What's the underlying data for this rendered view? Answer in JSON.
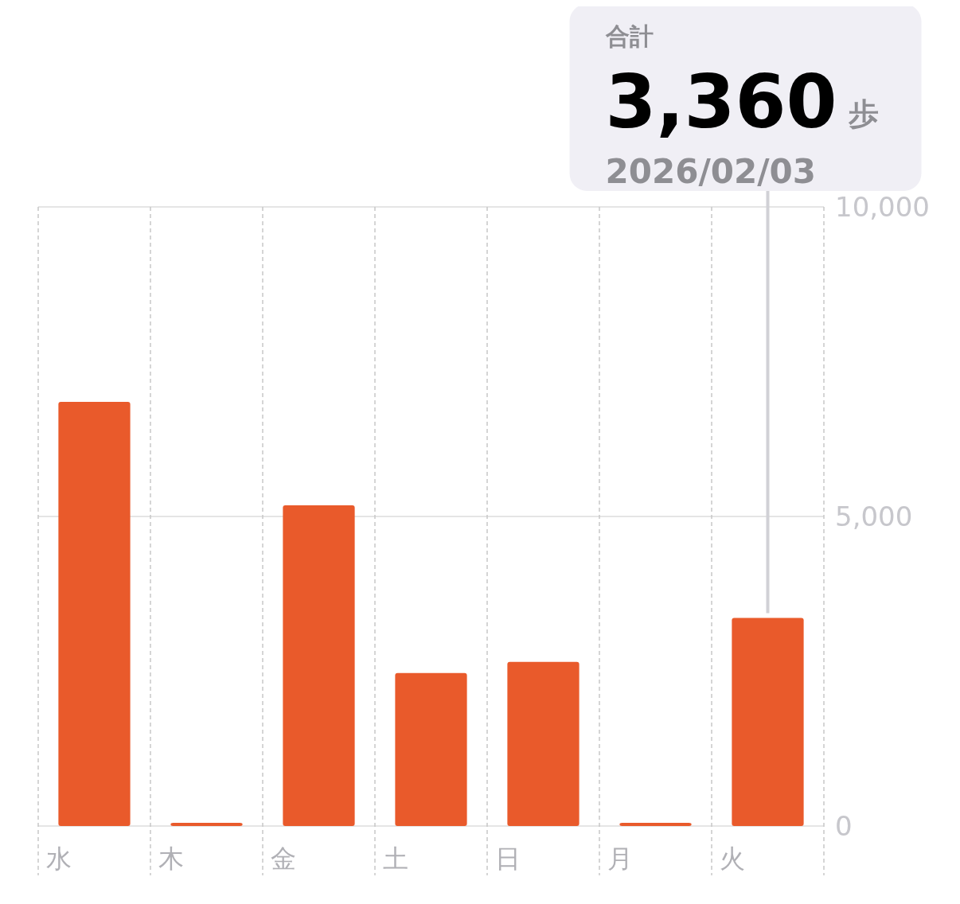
{
  "chart_data": {
    "type": "bar",
    "categories": [
      "水",
      "木",
      "金",
      "土",
      "日",
      "月",
      "火"
    ],
    "values": [
      6850,
      50,
      5180,
      2470,
      2650,
      50,
      3360
    ],
    "color": "#e95a2b",
    "ylim": [
      0,
      10000
    ],
    "yticks": [
      {
        "value": 0,
        "label": "0"
      },
      {
        "value": 5000,
        "label": "5,000"
      },
      {
        "value": 10000,
        "label": "10,000"
      }
    ],
    "grid": true,
    "annotations": [
      "合計",
      "3,360",
      "歩",
      "2026/02/03"
    ]
  }
}
